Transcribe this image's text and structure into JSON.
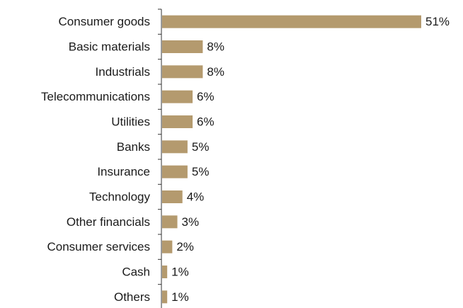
{
  "chart_data": {
    "type": "bar",
    "orientation": "horizontal",
    "categories": [
      "Consumer goods",
      "Basic materials",
      "Industrials",
      "Telecommunications",
      "Utilities",
      "Banks",
      "Insurance",
      "Technology",
      "Other financials",
      "Consumer services",
      "Cash",
      "Others"
    ],
    "values": [
      51,
      8,
      8,
      6,
      6,
      5,
      5,
      4,
      3,
      2,
      1,
      1
    ],
    "value_labels": [
      "51%",
      "8%",
      "8%",
      "6%",
      "6%",
      "5%",
      "5%",
      "4%",
      "3%",
      "2%",
      "1%",
      "1%"
    ],
    "title": "",
    "xlabel": "",
    "ylabel": "",
    "xlim": [
      0,
      51
    ],
    "grid": false,
    "legend": "none",
    "bar_color": "#b49a6e",
    "axis_color": "#333333"
  }
}
